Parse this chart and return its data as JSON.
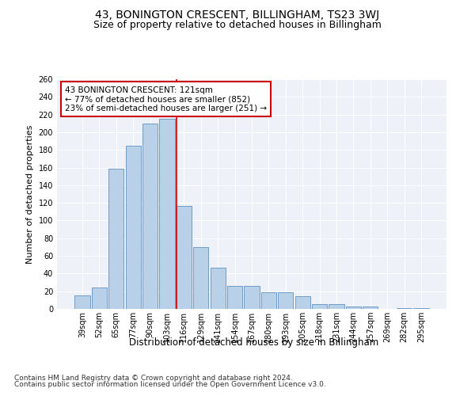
{
  "title": "43, BONINGTON CRESCENT, BILLINGHAM, TS23 3WJ",
  "subtitle": "Size of property relative to detached houses in Billingham",
  "xlabel": "Distribution of detached houses by size in Billingham",
  "ylabel": "Number of detached properties",
  "categories": [
    "39sqm",
    "52sqm",
    "65sqm",
    "77sqm",
    "90sqm",
    "103sqm",
    "116sqm",
    "129sqm",
    "141sqm",
    "154sqm",
    "167sqm",
    "180sqm",
    "193sqm",
    "205sqm",
    "218sqm",
    "231sqm",
    "244sqm",
    "257sqm",
    "269sqm",
    "282sqm",
    "295sqm"
  ],
  "values": [
    15,
    24,
    159,
    185,
    210,
    215,
    117,
    70,
    47,
    26,
    26,
    19,
    19,
    14,
    5,
    5,
    3,
    3,
    0,
    1,
    1
  ],
  "bar_color": "#b8d0e8",
  "bar_edge_color": "#6090c0",
  "property_line_index": 6,
  "property_line_color": "#cc0000",
  "annotation_line1": "43 BONINGTON CRESCENT: 121sqm",
  "annotation_line2": "← 77% of detached houses are smaller (852)",
  "annotation_line3": "23% of semi-detached houses are larger (251) →",
  "annotation_box_color": "#ffffff",
  "annotation_box_edge_color": "#cc0000",
  "ylim": [
    0,
    260
  ],
  "yticks": [
    0,
    20,
    40,
    60,
    80,
    100,
    120,
    140,
    160,
    180,
    200,
    220,
    240,
    260
  ],
  "footnote1": "Contains HM Land Registry data © Crown copyright and database right 2024.",
  "footnote2": "Contains public sector information licensed under the Open Government Licence v3.0.",
  "background_color": "#eef2f8",
  "title_fontsize": 10,
  "subtitle_fontsize": 9,
  "xlabel_fontsize": 8.5,
  "ylabel_fontsize": 8,
  "tick_fontsize": 7,
  "annotation_fontsize": 7.5,
  "footnote_fontsize": 6.5
}
